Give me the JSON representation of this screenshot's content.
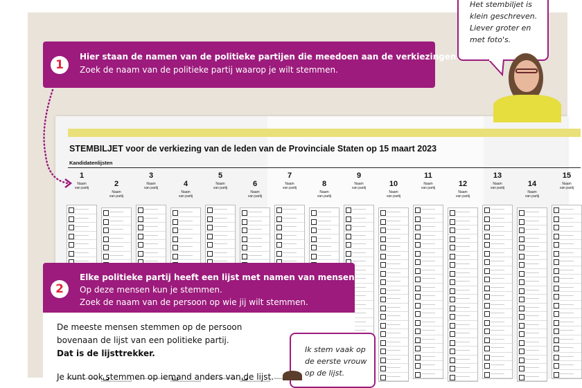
{
  "callout1": {
    "number": "1",
    "title": "Hier staan de namen van de politieke partijen die meedoen aan de verkiezingen.",
    "text": "Zoek de naam van de politieke partij waarop je wilt stemmen."
  },
  "callout2": {
    "number": "2",
    "title": "Elke politieke partij heeft een lijst met namen van mensen.",
    "line1": "Op deze mensen kun je stemmen.",
    "line2": "Zoek de naam van de persoon op wie jij wilt stemmen."
  },
  "body": {
    "p1": "De meeste mensen stemmen op de persoon",
    "p2": "bovenaan de lijst van een politieke partij.",
    "p3": "Dat is de lijsttrekker.",
    "p4": "Je kunt ook stemmen op iemand anders van de lijst."
  },
  "bubble_top": {
    "l1": "Het stembiljet is",
    "l2": "klein geschreven.",
    "l3": "Liever groter en",
    "l4": "met foto's."
  },
  "bubble_bottom": {
    "l1": "Ik stem vaak op",
    "l2": "de eerste vrouw",
    "l3": "op de lijst."
  },
  "ballot": {
    "title": "STEMBILJET voor de verkiezing van de leden van de Provinciale Staten op 15 maart 2023",
    "subtitle": "Kandidatenlijsten",
    "party_label_1": "Naam",
    "party_label_2": "van partij",
    "columns": [
      "1",
      "2",
      "3",
      "4",
      "5",
      "6",
      "7",
      "8",
      "9",
      "10",
      "11",
      "12",
      "13",
      "14",
      "15"
    ]
  },
  "colors": {
    "accent": "#9c1b7c",
    "badge_number": "#e2283b",
    "background": "#e9e3da",
    "ballot_band": "#e9e07a"
  }
}
